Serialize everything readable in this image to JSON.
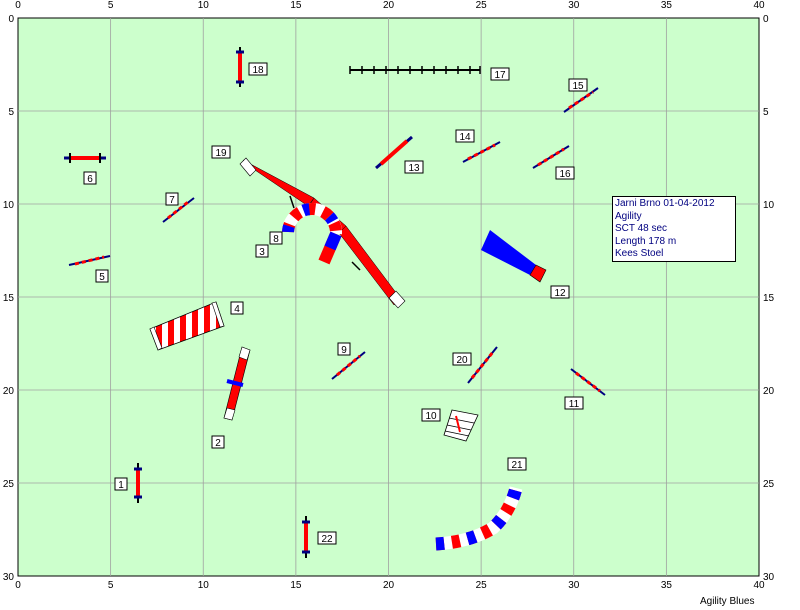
{
  "course_info": {
    "event": "Jarni Brno 01-04-2012",
    "class": "Agility",
    "sct": "SCT 48 sec",
    "length": "Length 178 m",
    "judge": "Kees Stoel"
  },
  "footer_text": "Agility Blues",
  "axes": {
    "x_ticks": [
      "0",
      "5",
      "10",
      "15",
      "20",
      "25",
      "30",
      "35",
      "40"
    ],
    "y_ticks": [
      "0",
      "5",
      "10",
      "15",
      "20",
      "25",
      "30"
    ]
  },
  "colors": {
    "field": "#ccffcc",
    "grid": "#a0a0a0",
    "red": "#ff0000",
    "blue": "#0000ff",
    "navy": "#000080"
  },
  "obstacles": [
    {
      "number": "1",
      "type": "jump-vertical"
    },
    {
      "number": "2",
      "type": "seesaw"
    },
    {
      "number": "3",
      "type": "tunnel-curve"
    },
    {
      "number": "4",
      "type": "tire"
    },
    {
      "number": "5",
      "type": "jump"
    },
    {
      "number": "6",
      "type": "jump"
    },
    {
      "number": "7",
      "type": "jump"
    },
    {
      "number": "8",
      "type": "tunnel-curve"
    },
    {
      "number": "9",
      "type": "jump"
    },
    {
      "number": "10",
      "type": "weave-poles"
    },
    {
      "number": "11",
      "type": "jump"
    },
    {
      "number": "12",
      "type": "chute"
    },
    {
      "number": "13",
      "type": "jump"
    },
    {
      "number": "14",
      "type": "jump"
    },
    {
      "number": "15",
      "type": "jump"
    },
    {
      "number": "16",
      "type": "jump"
    },
    {
      "number": "17",
      "type": "weave-poles"
    },
    {
      "number": "18",
      "type": "jump-vertical"
    },
    {
      "number": "19",
      "type": "dogwalk"
    },
    {
      "number": "20",
      "type": "jump"
    },
    {
      "number": "21",
      "type": "tunnel-curve"
    },
    {
      "number": "22",
      "type": "jump-vertical"
    }
  ]
}
